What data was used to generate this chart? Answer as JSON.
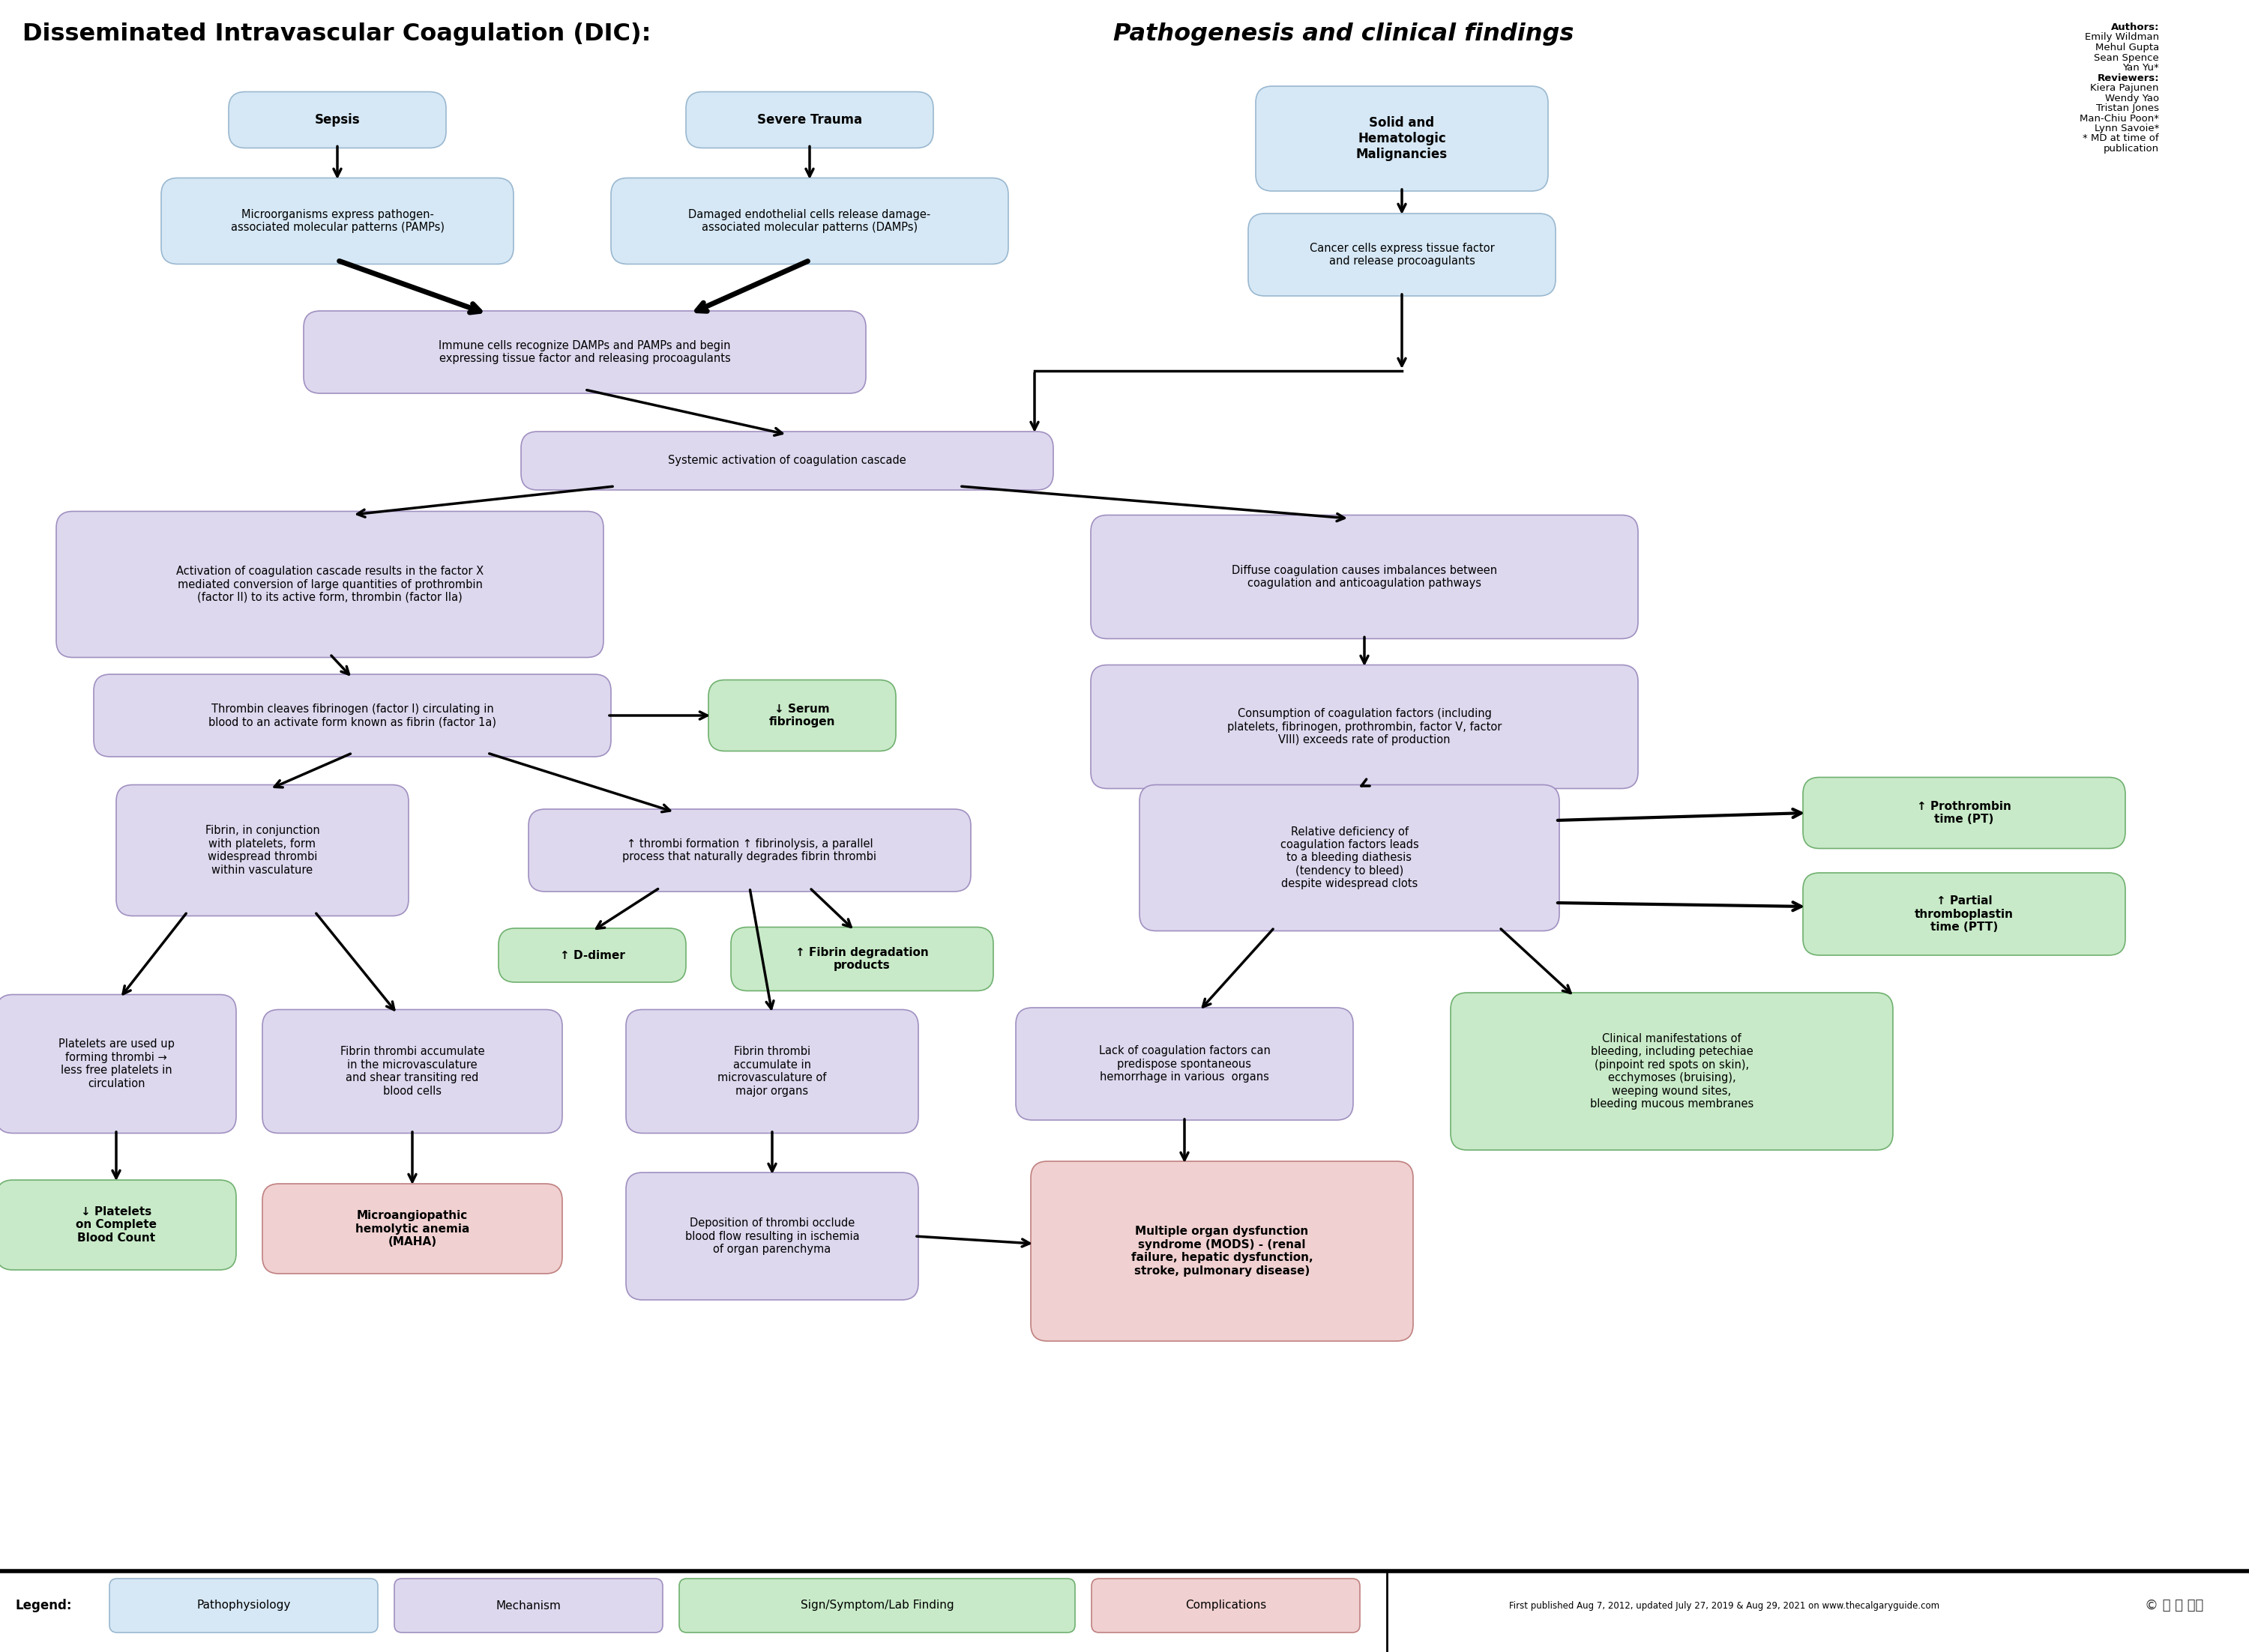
{
  "bg_color": "#ffffff",
  "box_blue": "#d6e8f5",
  "box_lavender": "#ddd8ee",
  "box_green": "#c8eac8",
  "box_pink": "#f0d0d0",
  "legend_blue1": "#d6e8f5",
  "legend_blue2": "#ddd8ee",
  "legend_green": "#c8eac8",
  "legend_pink": "#f0d0d0",
  "title_bold": "Disseminated Intravascular Coagulation (DIC): ",
  "title_italic": "Pathogenesis and clinical findings",
  "authors": "Authors:\nEmily Wildman\nMehul Gupta\nSean Spence\nYan Yu*\nReviewers:\nKiera Pajunen\nWendy Yao\nTristan Jones\nMan-Chiu Poon*\nLynn Savoie*\n* MD at time of\npublication",
  "footer": "First published Aug 7, 2012, updated July 27, 2019 & Aug 29, 2021 on www.thecalgaryguide.com"
}
